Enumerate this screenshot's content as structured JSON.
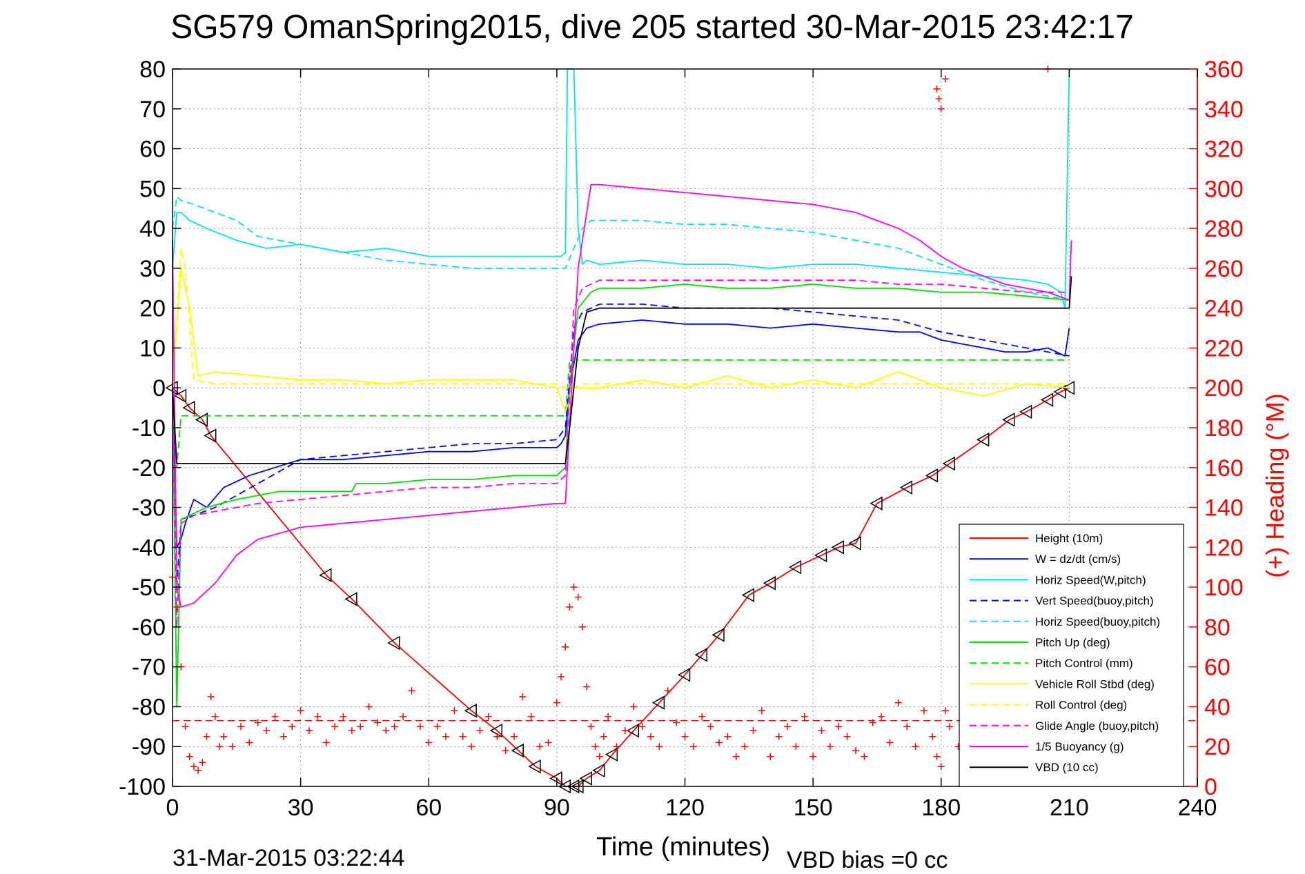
{
  "chart_data": {
    "type": "line",
    "title": "SG579 OmanSpring2015, dive 205 started 30-Mar-2015 23:42:17",
    "xlabel": "Time (minutes)",
    "ylabel": "",
    "ylabel_right": "(+) Heading (°M)",
    "xlim": [
      0,
      240
    ],
    "ylim": [
      -100,
      80
    ],
    "ylim_right": [
      0,
      360
    ],
    "x_ticks": [
      "0",
      "30",
      "60",
      "90",
      "120",
      "150",
      "180",
      "210",
      "240"
    ],
    "y_ticks": [
      "80",
      "70",
      "60",
      "50",
      "40",
      "30",
      "20",
      "10",
      "0",
      "-10",
      "-20",
      "-30",
      "-40",
      "-50",
      "-60",
      "-70",
      "-80",
      "-90",
      "-100"
    ],
    "y_ticks_right": [
      "360",
      "340",
      "320",
      "300",
      "280",
      "260",
      "240",
      "220",
      "200",
      "180",
      "160",
      "140",
      "120",
      "100",
      "80",
      "60",
      "40",
      "20",
      "0"
    ],
    "grid": true,
    "legend_position": "bottom-right",
    "footer_left": "31-Mar-2015 03:22:44",
    "footer_right": "VBD bias =0 cc",
    "heading_mean_line": 33,
    "series": [
      {
        "name": "Height (10m)",
        "color": "#ff0000",
        "style": "solid",
        "marker": "triangle",
        "x": [
          0,
          2,
          4,
          7,
          9,
          36,
          42,
          52,
          70,
          76,
          81,
          85,
          90,
          92,
          94,
          95,
          97,
          100,
          103,
          108,
          114,
          120,
          124,
          128,
          135,
          140,
          146,
          152,
          156,
          160,
          165,
          172,
          178,
          182,
          190,
          196,
          200,
          205,
          208,
          210
        ],
        "values": [
          0,
          -2,
          -5,
          -8,
          -12,
          -47,
          -53,
          -64,
          -81,
          -86,
          -91,
          -95,
          -98,
          -100,
          -100,
          -100,
          -98,
          -96,
          -92,
          -86,
          -79,
          -72,
          -67,
          -62,
          -52,
          -49,
          -45,
          -42,
          -40,
          -39,
          -29,
          -25,
          -22,
          -19,
          -13,
          -8,
          -6,
          -3,
          -1,
          0
        ]
      },
      {
        "name": "W = dz/dt (cm/s)",
        "color": "#0000ff",
        "style": "solid",
        "x": [
          0,
          1,
          2,
          3,
          5,
          8,
          12,
          18,
          24,
          30,
          40,
          50,
          60,
          70,
          80,
          90,
          91,
          92,
          93,
          95,
          97,
          100,
          110,
          120,
          130,
          140,
          150,
          160,
          170,
          175,
          180,
          185,
          190,
          195,
          200,
          205,
          209,
          210
        ],
        "values": [
          0,
          -40,
          -38,
          -34,
          -28,
          -30,
          -25,
          -22,
          -20,
          -18,
          -18,
          -17,
          -16,
          -16,
          -15,
          -15,
          -14,
          -12,
          0,
          12,
          15,
          16,
          17,
          16,
          16,
          15,
          16,
          15,
          14,
          14,
          12,
          11,
          10,
          9,
          9,
          10,
          8,
          15
        ]
      },
      {
        "name": "Horiz Speed(W,pitch)",
        "color": "#00e5e5",
        "style": "solid",
        "x": [
          0,
          1,
          2,
          4,
          8,
          15,
          22,
          30,
          40,
          50,
          60,
          70,
          80,
          90,
          91,
          92,
          92.5,
          93,
          94,
          95,
          96,
          97,
          100,
          110,
          120,
          130,
          140,
          150,
          160,
          170,
          180,
          190,
          200,
          205,
          208,
          209,
          210,
          210.5
        ],
        "values": [
          30,
          44,
          44,
          42,
          40,
          37,
          35,
          36,
          34,
          35,
          33,
          33,
          33,
          33,
          33,
          34,
          80,
          80,
          80,
          40,
          31,
          32,
          31,
          32,
          31,
          31,
          30,
          31,
          31,
          30,
          29,
          28,
          27,
          26,
          24,
          20,
          80,
          80
        ]
      },
      {
        "name": "Vert Speed(buoy,pitch)",
        "color": "#0000ff",
        "style": "dashed",
        "x": [
          0,
          1,
          2,
          5,
          10,
          20,
          30,
          40,
          50,
          60,
          70,
          80,
          90,
          92,
          94,
          96,
          100,
          110,
          120,
          130,
          140,
          150,
          160,
          170,
          180,
          190,
          200,
          210
        ],
        "values": [
          0,
          -50,
          -33,
          -32,
          -30,
          -24,
          -18,
          -17,
          -16,
          -15,
          -14,
          -14,
          -13,
          -10,
          15,
          19,
          21,
          21,
          20,
          20,
          20,
          19,
          18,
          17,
          14,
          12,
          10,
          8
        ]
      },
      {
        "name": "Horiz Speed(buoy,pitch)",
        "color": "#00e5e5",
        "style": "dashed",
        "x": [
          0,
          1,
          2,
          5,
          10,
          15,
          20,
          30,
          40,
          50,
          60,
          70,
          80,
          90,
          92,
          94,
          96,
          98,
          100,
          110,
          120,
          130,
          140,
          150,
          160,
          170,
          180,
          190,
          200,
          205,
          210
        ],
        "values": [
          40,
          48,
          47,
          46,
          44,
          42,
          38,
          36,
          34,
          32,
          31,
          30,
          30,
          30,
          30,
          35,
          40,
          42,
          42,
          42,
          41,
          41,
          40,
          39,
          37,
          35,
          31,
          27,
          24,
          23,
          22
        ]
      },
      {
        "name": "Pitch Up (deg)",
        "color": "#00e000",
        "style": "solid",
        "x": [
          0,
          1,
          2,
          4,
          8,
          15,
          25,
          35,
          42,
          43,
          50,
          60,
          70,
          80,
          90,
          92,
          93,
          95,
          98,
          100,
          110,
          120,
          130,
          140,
          150,
          160,
          170,
          180,
          190,
          200,
          210
        ],
        "values": [
          0,
          -80,
          -33,
          -32,
          -30,
          -28,
          -26,
          -26,
          -26,
          -24,
          -24,
          -23,
          -23,
          -22,
          -22,
          -20,
          0,
          20,
          24,
          25,
          25,
          26,
          25,
          25,
          26,
          25,
          25,
          24,
          24,
          23,
          22
        ]
      },
      {
        "name": "Pitch Control (mm)",
        "color": "#00e000",
        "style": "dashed",
        "x": [
          0,
          1,
          2,
          10,
          20,
          30,
          40,
          50,
          60,
          70,
          80,
          90,
          91,
          92,
          93,
          95,
          100,
          150,
          200,
          210
        ],
        "values": [
          0,
          -20,
          -7,
          -7,
          -7,
          -7,
          -7,
          -7,
          -7,
          -7,
          -7,
          -7,
          -7,
          -7,
          7,
          7,
          7,
          7,
          7,
          7
        ]
      },
      {
        "name": "Vehicle Roll Stbd (deg)",
        "color": "#ffff00",
        "style": "solid",
        "x": [
          0,
          2,
          4,
          6,
          10,
          20,
          30,
          40,
          50,
          60,
          70,
          80,
          90,
          92,
          94,
          96,
          100,
          110,
          120,
          130,
          140,
          150,
          160,
          170,
          180,
          190,
          200,
          210
        ],
        "values": [
          0,
          30,
          20,
          3,
          4,
          3,
          2,
          2,
          1,
          2,
          2,
          2,
          0,
          -6,
          0,
          0,
          0,
          2,
          0,
          3,
          0,
          2,
          0,
          4,
          0,
          -2,
          1,
          0
        ]
      },
      {
        "name": "Roll Control (deg)",
        "color": "#ffff00",
        "style": "dashed",
        "x": [
          0,
          2,
          3,
          5,
          10,
          30,
          50,
          70,
          90,
          92,
          94,
          96,
          100,
          120,
          140,
          160,
          180,
          190,
          200,
          210
        ],
        "values": [
          0,
          35,
          30,
          2,
          1,
          1,
          1,
          1,
          1,
          0,
          0,
          1,
          1,
          1,
          1,
          1,
          1,
          1,
          1,
          1
        ]
      },
      {
        "name": "Glide Angle (buoy,pitch)",
        "color": "#ff00ff",
        "style": "dashed",
        "x": [
          0,
          1,
          2,
          5,
          10,
          20,
          30,
          40,
          50,
          60,
          70,
          80,
          90,
          92,
          94,
          96,
          100,
          110,
          120,
          130,
          140,
          150,
          160,
          170,
          180,
          190,
          200,
          210
        ],
        "values": [
          0,
          -60,
          -34,
          -32,
          -31,
          -29,
          -28,
          -27,
          -26,
          -25,
          -25,
          -24,
          -24,
          -22,
          20,
          25,
          27,
          27,
          27,
          27,
          27,
          27,
          27,
          26,
          26,
          25,
          24,
          24
        ]
      },
      {
        "name": "1/5 Buoyancy (g)",
        "color": "#ff00ff",
        "style": "solid",
        "x": [
          0,
          1,
          2,
          5,
          10,
          15,
          20,
          30,
          40,
          50,
          60,
          70,
          80,
          90,
          91,
          92,
          95,
          98,
          100,
          110,
          120,
          130,
          140,
          150,
          160,
          165,
          170,
          175,
          180,
          185,
          190,
          195,
          200,
          205,
          210,
          210.5
        ],
        "values": [
          37,
          -50,
          -55,
          -54,
          -49,
          -42,
          -38,
          -35,
          -34,
          -33,
          -32,
          -31,
          -30,
          -29,
          -29,
          -29,
          30,
          51,
          51,
          50,
          49,
          48,
          47,
          46,
          44,
          42,
          40,
          37,
          33,
          30,
          28,
          26,
          25,
          24,
          22,
          37
        ]
      },
      {
        "name": "VBD (10 cc)",
        "color": "#000000",
        "style": "solid",
        "x": [
          0,
          1,
          2,
          90,
          91,
          92,
          93,
          95,
          97,
          100,
          150,
          200,
          209,
          210,
          210.5
        ],
        "values": [
          0,
          -19,
          -19,
          -19,
          -19,
          -19,
          -10,
          10,
          19,
          20,
          20,
          20,
          20,
          20,
          28
        ]
      }
    ],
    "heading_series": {
      "name": "(+) Heading",
      "color": "#ff0000",
      "marker": "plus",
      "x": [
        0,
        1,
        2,
        3,
        4,
        5,
        6,
        7,
        8,
        9,
        10,
        11,
        12,
        14,
        16,
        18,
        20,
        22,
        24,
        26,
        28,
        30,
        32,
        34,
        36,
        38,
        40,
        42,
        44,
        46,
        48,
        50,
        52,
        54,
        56,
        58,
        60,
        62,
        64,
        66,
        68,
        70,
        72,
        74,
        76,
        78,
        80,
        82,
        84,
        86,
        88,
        90,
        91,
        92,
        93,
        94,
        95,
        96,
        97,
        98,
        99,
        100,
        101,
        102,
        104,
        106,
        108,
        110,
        112,
        114,
        116,
        118,
        120,
        122,
        124,
        126,
        128,
        130,
        132,
        134,
        136,
        138,
        140,
        142,
        144,
        146,
        148,
        150,
        152,
        154,
        156,
        158,
        160,
        162,
        164,
        166,
        168,
        170,
        172,
        174,
        176,
        178,
        179,
        180,
        181,
        182,
        184,
        186,
        188,
        190,
        192,
        194,
        196,
        198,
        200,
        202,
        204,
        206,
        208,
        210
      ],
      "values": [
        105,
        90,
        60,
        30,
        15,
        10,
        8,
        12,
        25,
        45,
        35,
        20,
        25,
        20,
        30,
        22,
        32,
        28,
        35,
        25,
        30,
        38,
        28,
        35,
        22,
        30,
        35,
        28,
        30,
        40,
        32,
        28,
        30,
        35,
        48,
        30,
        22,
        30,
        25,
        38,
        25,
        20,
        28,
        35,
        25,
        18,
        25,
        45,
        35,
        20,
        22,
        42,
        55,
        70,
        90,
        100,
        95,
        80,
        50,
        30,
        20,
        15,
        25,
        35,
        20,
        28,
        40,
        30,
        25,
        20,
        48,
        32,
        25,
        20,
        35,
        30,
        22,
        25,
        15,
        20,
        28,
        38,
        15,
        25,
        30,
        20,
        35,
        15,
        28,
        20,
        30,
        25,
        18,
        15,
        32,
        35,
        22,
        42,
        30,
        20,
        38,
        25,
        15,
        10,
        38,
        30,
        20,
        15,
        30,
        25,
        18,
        15,
        25,
        30,
        20,
        35,
        28,
        25,
        35,
        30
      ]
    },
    "heading_outliers": [
      [
        179,
        350
      ],
      [
        179.5,
        345
      ],
      [
        180,
        340
      ],
      [
        181,
        355
      ],
      [
        205,
        360
      ]
    ]
  }
}
